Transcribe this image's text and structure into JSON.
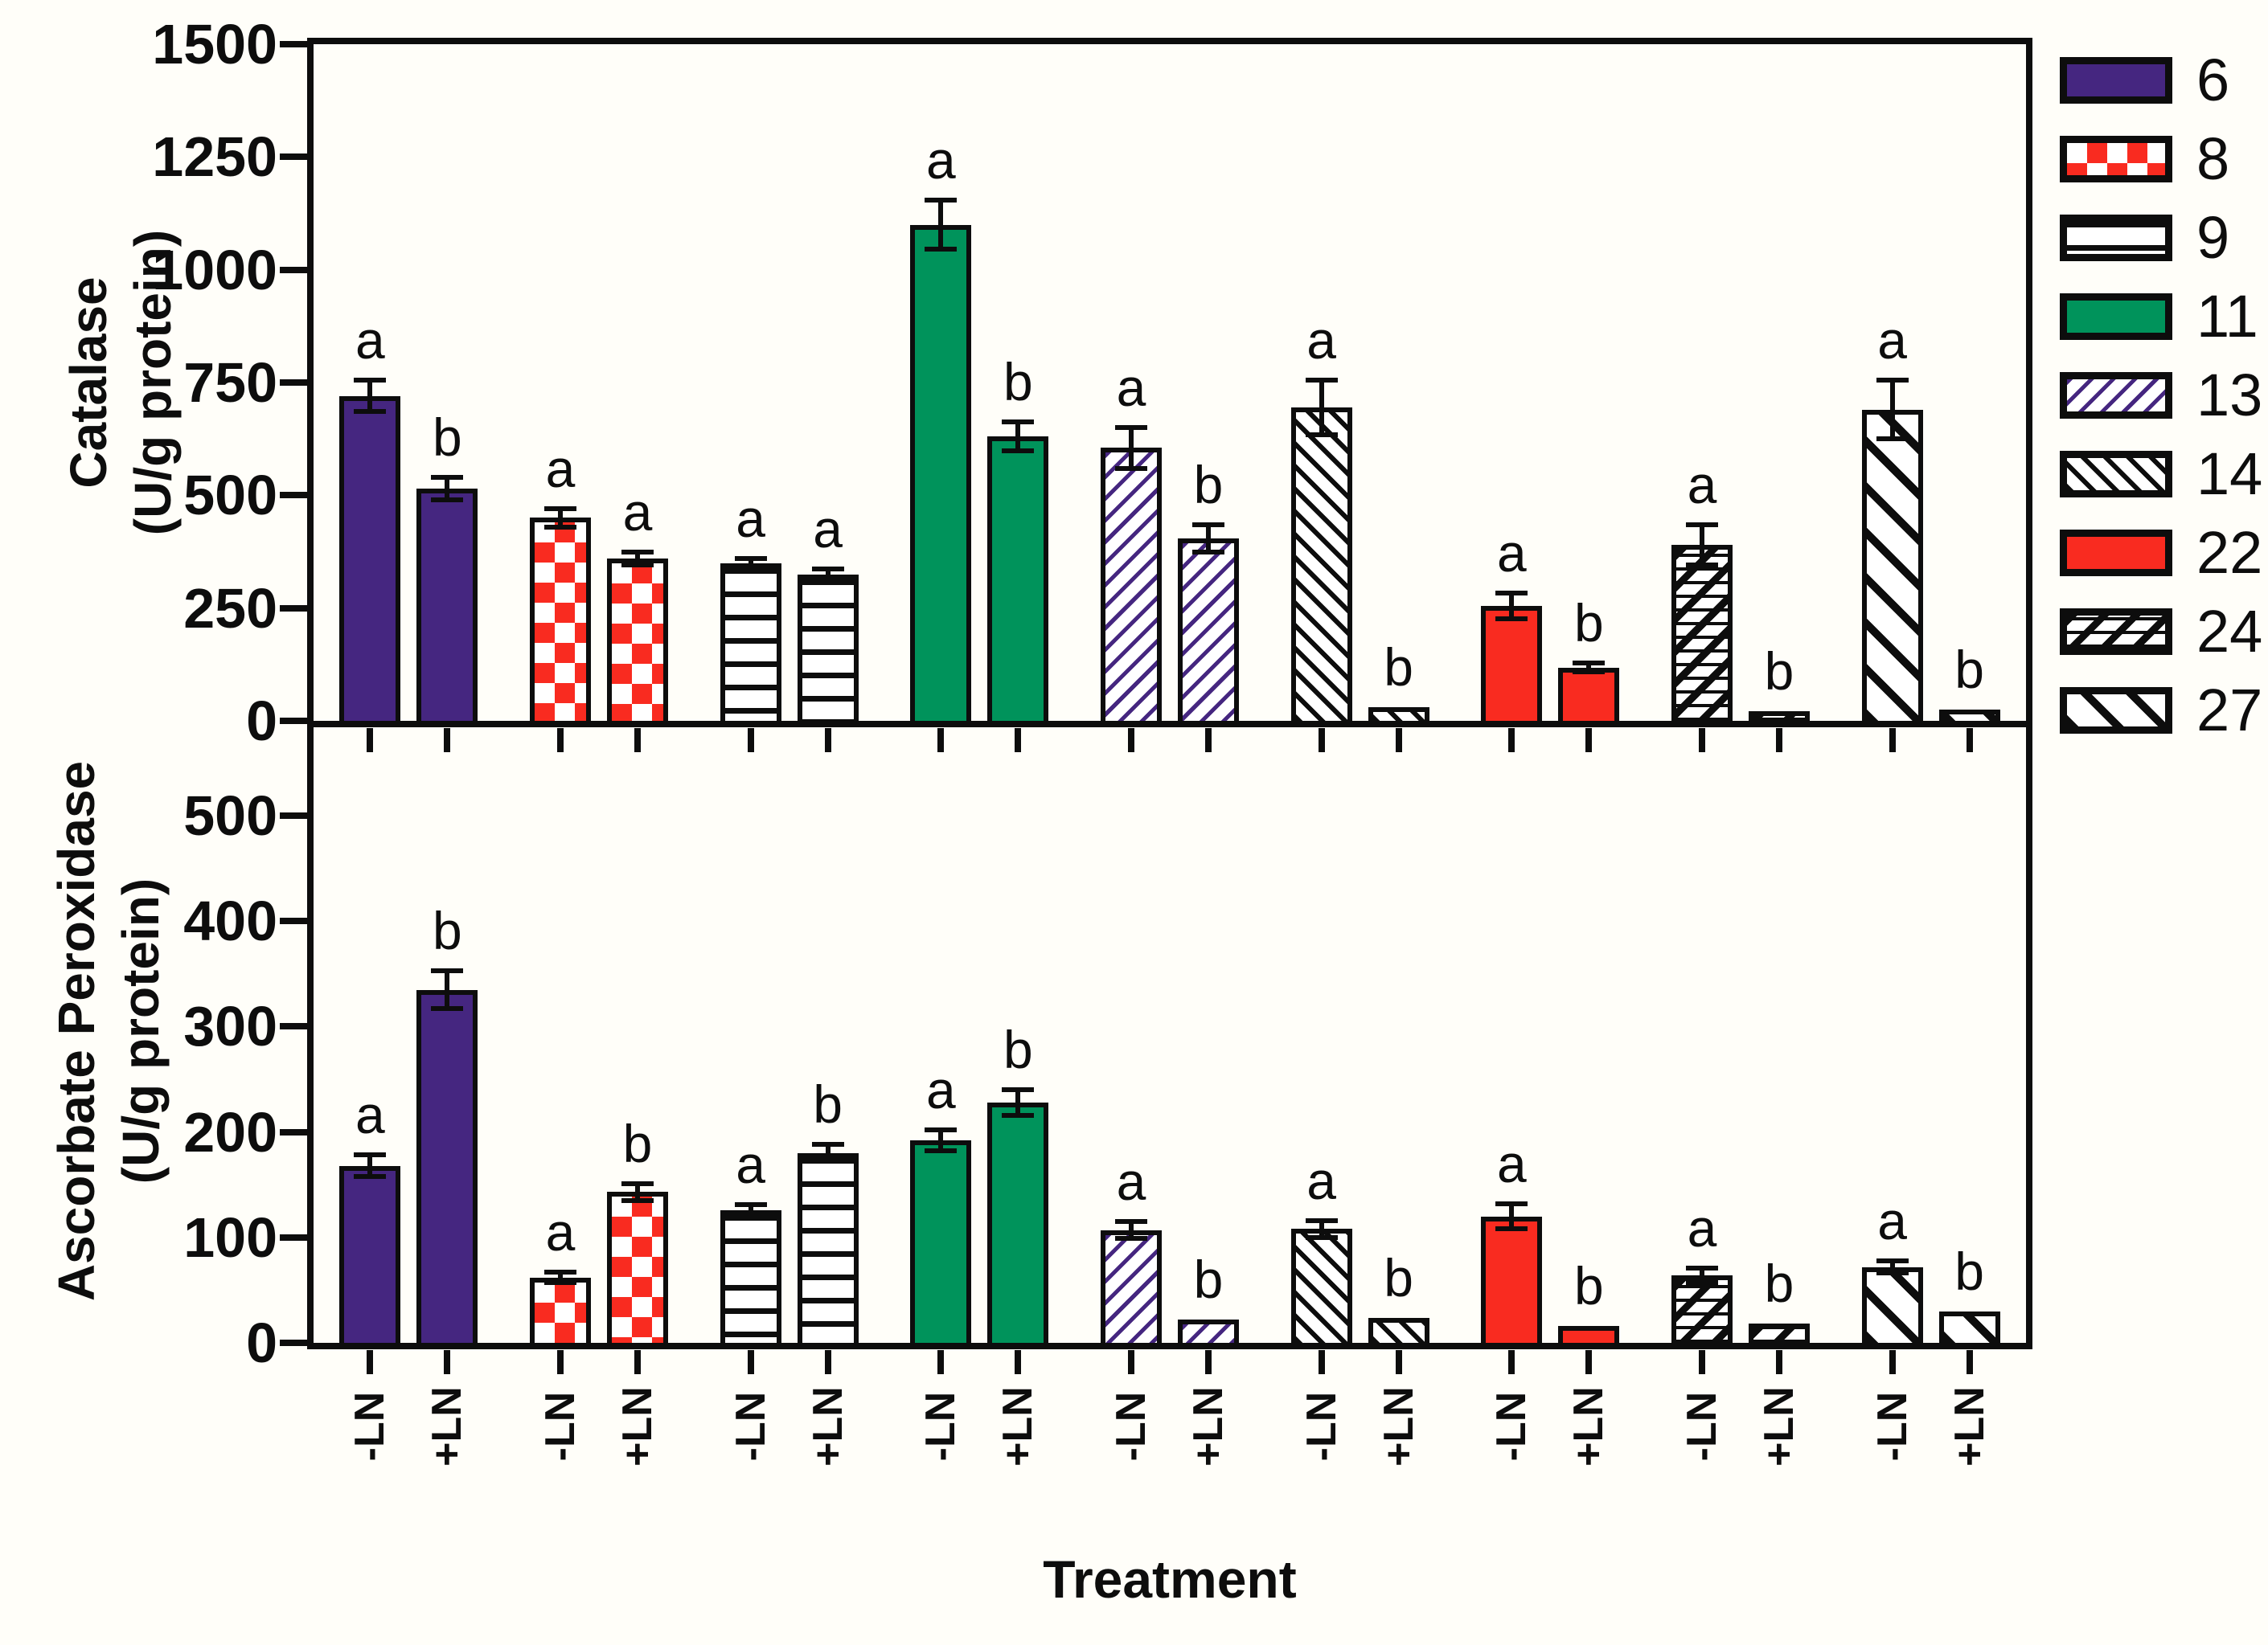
{
  "figure": {
    "xlabel": "Treatment",
    "x_tick_labels": [
      "-LN",
      "+LN"
    ],
    "colors": {
      "purple": "#452680",
      "green": "#00935B",
      "red": "#F92B20",
      "ink": "#0d0d0d"
    },
    "legend": [
      {
        "label": "6",
        "pattern": "solid-purple"
      },
      {
        "label": "8",
        "pattern": "checker-red"
      },
      {
        "label": "9",
        "pattern": "hlines-black"
      },
      {
        "label": "11",
        "pattern": "solid-green"
      },
      {
        "label": "13",
        "pattern": "diag-purple"
      },
      {
        "label": "14",
        "pattern": "diag-dense-black"
      },
      {
        "label": "22",
        "pattern": "solid-red"
      },
      {
        "label": "24",
        "pattern": "crosshatch-black"
      },
      {
        "label": "27",
        "pattern": "diag-wide-black"
      }
    ],
    "legend_position": "right"
  },
  "chart_data": [
    {
      "type": "bar",
      "name": "catalase",
      "ylabel": "Catalase (U/g protein)",
      "ylabel_lines": [
        "Catalase",
        "(U/g protein)"
      ],
      "ylim": [
        0,
        1500
      ],
      "yticks": [
        0,
        250,
        500,
        750,
        1000,
        1250,
        1500
      ],
      "grid": false,
      "categories": [
        "6",
        "8",
        "9",
        "11",
        "13",
        "14",
        "22",
        "24",
        "27"
      ],
      "series": [
        {
          "name": "-LN",
          "values": [
            720,
            450,
            350,
            1100,
            605,
            695,
            255,
            390,
            690
          ],
          "errors": [
            35,
            20,
            10,
            55,
            45,
            60,
            28,
            45,
            65
          ],
          "sig_letters": [
            "a",
            "a",
            "a",
            "a",
            "a",
            "a",
            "a",
            "a",
            "a"
          ]
        },
        {
          "name": "+LN",
          "values": [
            515,
            360,
            325,
            630,
            405,
            30,
            118,
            22,
            25
          ],
          "errors": [
            25,
            15,
            12,
            32,
            30,
            0,
            10,
            0,
            0
          ],
          "sig_letters": [
            "b",
            "a",
            "a",
            "b",
            "b",
            "b",
            "b",
            "b",
            "b"
          ]
        }
      ]
    },
    {
      "type": "bar",
      "name": "ascorbate-peroxidase",
      "ylabel": "Ascorbate Peroxidase (U/g protein)",
      "ylabel_lines": [
        "Ascorbate Peroxidase",
        "(U/g protein)"
      ],
      "ylim": [
        0,
        590
      ],
      "yticks": [
        0,
        100,
        200,
        300,
        400,
        500
      ],
      "grid": false,
      "categories": [
        "6",
        "8",
        "9",
        "11",
        "13",
        "14",
        "22",
        "24",
        "27"
      ],
      "series": [
        {
          "name": "-LN",
          "values": [
            168,
            62,
            126,
            192,
            107,
            108,
            120,
            64,
            72
          ],
          "errors": [
            10,
            5,
            5,
            10,
            8,
            8,
            12,
            7,
            6
          ],
          "sig_letters": [
            "a",
            "a",
            "a",
            "a",
            "a",
            "a",
            "a",
            "a",
            "a"
          ]
        },
        {
          "name": "+LN",
          "values": [
            335,
            143,
            180,
            228,
            22,
            24,
            16,
            18,
            30
          ],
          "errors": [
            18,
            8,
            8,
            12,
            0,
            0,
            0,
            0,
            0
          ],
          "sig_letters": [
            "b",
            "b",
            "b",
            "b",
            "b",
            "b",
            "b",
            "b",
            "b"
          ]
        }
      ]
    }
  ]
}
